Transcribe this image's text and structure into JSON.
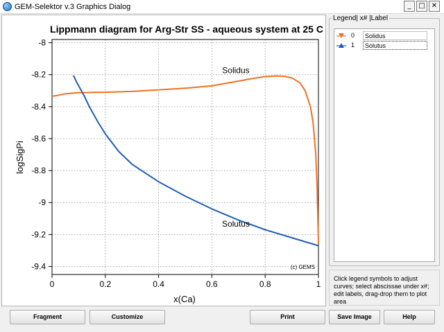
{
  "window": {
    "title": "GEM-Selektor v.3 Graphics Dialog",
    "minimize_glyph": "_",
    "maximize_glyph": "□",
    "close_glyph": "✕"
  },
  "chart_data": {
    "type": "line",
    "title": "Lippmann diagram for Arg-Str SS - aqueous system at 25 C",
    "xlabel": "x(Ca)",
    "ylabel": "logSigPi",
    "xlim": [
      0,
      1
    ],
    "ylim": [
      -9.45,
      -7.98
    ],
    "xticks": [
      0,
      0.2,
      0.4,
      0.6,
      0.8,
      1
    ],
    "yticks": [
      -8,
      -8.2,
      -8.4,
      -8.6,
      -8.8,
      -9,
      -9.2,
      -9.4
    ],
    "grid": true,
    "watermark": "(c) GEMS",
    "series": [
      {
        "name": "Solidus",
        "color": "#f07022",
        "x": [
          0,
          0.02,
          0.05,
          0.08,
          0.1,
          0.13,
          0.15,
          0.2,
          0.3,
          0.4,
          0.5,
          0.6,
          0.65,
          0.7,
          0.75,
          0.8,
          0.84,
          0.87,
          0.9,
          0.93,
          0.95,
          0.97,
          0.98,
          0.99,
          0.995,
          1
        ],
        "y": [
          -8.335,
          -8.33,
          -8.32,
          -8.315,
          -8.313,
          -8.312,
          -8.311,
          -8.31,
          -8.305,
          -8.295,
          -8.285,
          -8.27,
          -8.255,
          -8.24,
          -8.225,
          -8.212,
          -8.208,
          -8.21,
          -8.22,
          -8.25,
          -8.3,
          -8.4,
          -8.5,
          -8.7,
          -8.9,
          -9.26
        ]
      },
      {
        "name": "Solutus",
        "color": "#1f5fb0",
        "x": [
          0.08,
          0.085,
          0.09,
          0.1,
          0.11,
          0.12,
          0.14,
          0.17,
          0.2,
          0.25,
          0.3,
          0.4,
          0.5,
          0.6,
          0.7,
          0.8,
          0.9,
          1
        ],
        "y": [
          -8.205,
          -8.22,
          -8.24,
          -8.27,
          -8.3,
          -8.33,
          -8.4,
          -8.49,
          -8.57,
          -8.68,
          -8.76,
          -8.87,
          -8.96,
          -9.04,
          -9.11,
          -9.17,
          -9.22,
          -9.27
        ]
      }
    ],
    "annotations": [
      {
        "text": "Solidus",
        "x": 0.69,
        "y": -8.19
      },
      {
        "text": "Solutus",
        "x": 0.69,
        "y": -9.15
      }
    ]
  },
  "legend": {
    "caption": "Legend| x# |Label",
    "rows": [
      {
        "symbol": "triangle-down-icon",
        "color": "#f07022",
        "index": "0",
        "label": "Solidus"
      },
      {
        "symbol": "triangle-up-icon",
        "color": "#1f5fb0",
        "index": "1",
        "label": "Solutus"
      }
    ]
  },
  "hint": "Click legend symbols to adjust curves; select abscissae under x#; edit labels, drag-drop them to plot area",
  "buttons": {
    "fragment": "Fragment",
    "customize": "Customize",
    "print": "Print",
    "save_image": "Save Image",
    "help": "Help"
  }
}
